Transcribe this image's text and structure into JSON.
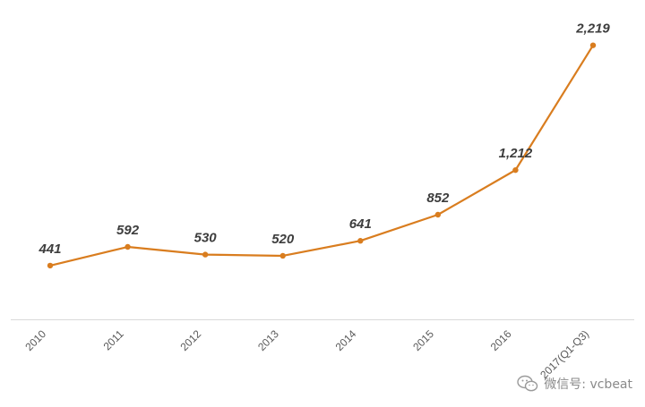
{
  "chart_data": {
    "type": "line",
    "title": "",
    "xlabel": "",
    "ylabel": "",
    "categories": [
      "2010",
      "2011",
      "2012",
      "2013",
      "2014",
      "2015",
      "2016",
      "2017(Q1-Q3)"
    ],
    "series": [
      {
        "name": "",
        "values": [
          441,
          592,
          530,
          520,
          641,
          852,
          1212,
          2219
        ],
        "labels": [
          "441",
          "592",
          "530",
          "520",
          "641",
          "852",
          "1,212",
          "2,219"
        ],
        "color": "#d97d1f"
      }
    ],
    "ylim": [
      0,
      2400
    ],
    "grid": false,
    "legend": "none"
  },
  "watermark": {
    "text": "微信号: vcbeat",
    "icon": "wechat-icon"
  },
  "colors": {
    "line": "#d97d1f",
    "axis": "#d9d9d9"
  }
}
